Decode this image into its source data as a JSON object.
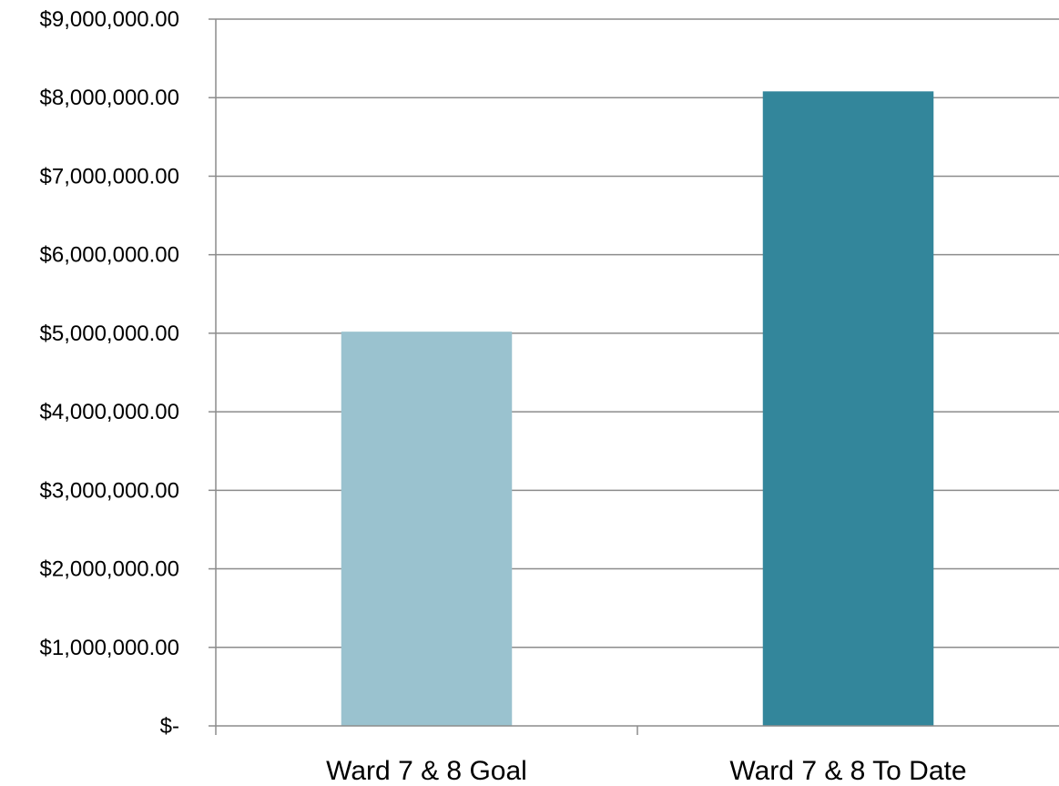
{
  "chart_data": {
    "type": "bar",
    "title": "",
    "xlabel": "",
    "ylabel": "",
    "categories": [
      "Ward 7 & 8 Goal",
      "Ward 7 & 8 To Date"
    ],
    "values": [
      5020000,
      8080000
    ],
    "bar_colors": [
      "#9ac2cf",
      "#33869b"
    ],
    "ylim": [
      0,
      9000000
    ],
    "yticks": [
      0,
      1000000,
      2000000,
      3000000,
      4000000,
      5000000,
      6000000,
      7000000,
      8000000,
      9000000
    ],
    "ytick_labels": [
      "$-",
      "$1,000,000.00",
      "$2,000,000.00",
      "$3,000,000.00",
      "$4,000,000.00",
      "$5,000,000.00",
      "$6,000,000.00",
      "$7,000,000.00",
      "$8,000,000.00",
      "$9,000,000.00"
    ],
    "grid": true,
    "legend": "none"
  }
}
